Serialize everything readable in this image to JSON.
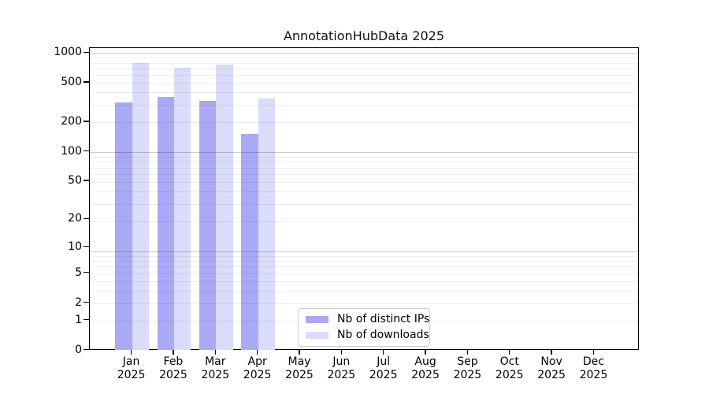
{
  "chart_data": {
    "type": "bar",
    "title": "AnnotationHubData 2025",
    "categories": [
      "Jan 2025",
      "Feb 2025",
      "Mar 2025",
      "Apr 2025",
      "May 2025",
      "Jun 2025",
      "Jul 2025",
      "Aug 2025",
      "Sep 2025",
      "Oct 2025",
      "Nov 2025",
      "Dec 2025"
    ],
    "series": [
      {
        "name": "Nb of distinct IPs",
        "color": "#a9a9f5",
        "values": [
          316,
          363,
          330,
          153,
          0,
          0,
          0,
          0,
          0,
          0,
          0,
          0
        ]
      },
      {
        "name": "Nb of downloads",
        "color": "#dbdbfa",
        "values": [
          800,
          712,
          762,
          350,
          0,
          0,
          0,
          0,
          0,
          0,
          0,
          0
        ]
      }
    ],
    "y_ticks": [
      0,
      1,
      2,
      5,
      10,
      20,
      50,
      100,
      200,
      500,
      1000
    ],
    "y_scale": "log10(1+x)",
    "ylim": [
      0,
      1000
    ],
    "grid": "on",
    "legend_position": "bottom-center"
  },
  "colors": {
    "grid_minor": "#ececec",
    "grid_major": "#cbcbcb",
    "axis": "#000000",
    "background": "#ffffff"
  }
}
